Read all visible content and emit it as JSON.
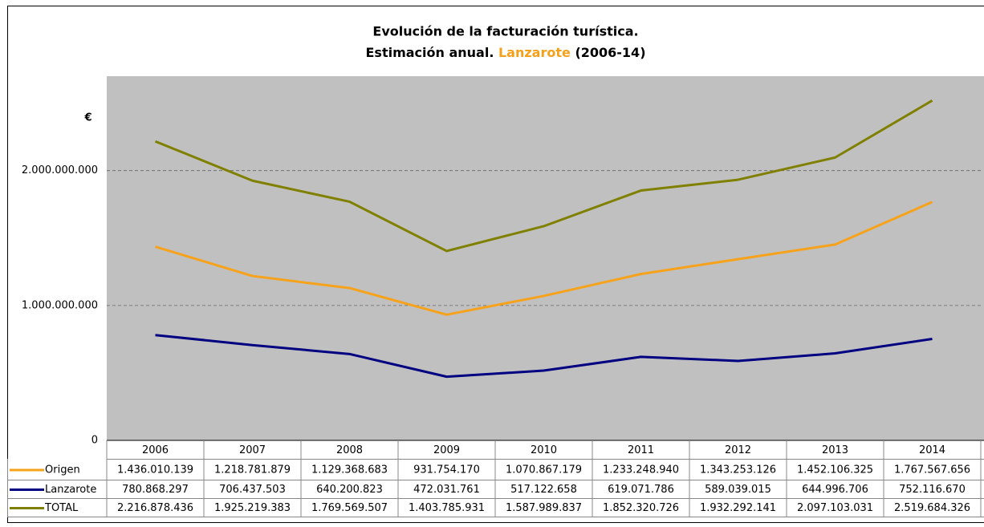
{
  "chart_data": {
    "type": "line",
    "title": "Evolución de la facturación turística.",
    "subtitle": "Estimación anual.",
    "highlight": "Lanzarote",
    "highlight_color": "#f5a01a",
    "period": "(2006-14)",
    "y_label": "€",
    "categories": [
      "2006",
      "2007",
      "2008",
      "2009",
      "2010",
      "2011",
      "2012",
      "2013",
      "2014"
    ],
    "series": [
      {
        "name": "Origen",
        "color": "#f7a21b",
        "values": [
          1436010139,
          1218781879,
          1129368683,
          931754170,
          1070867179,
          1233248940,
          1343253126,
          1452106325,
          1767567656
        ],
        "value_labels": [
          "1.436.010.139",
          "1.218.781.879",
          "1.129.368.683",
          "931.754.170",
          "1.070.867.179",
          "1.233.248.940",
          "1.343.253.126",
          "1.452.106.325",
          "1.767.567.656"
        ]
      },
      {
        "name": "Lanzarote",
        "color": "#000080",
        "values": [
          780868297,
          706437503,
          640200823,
          472031761,
          517122658,
          619071786,
          589039015,
          644996706,
          752116670
        ],
        "value_labels": [
          "780.868.297",
          "706.437.503",
          "640.200.823",
          "472.031.761",
          "517.122.658",
          "619.071.786",
          "589.039.015",
          "644.996.706",
          "752.116.670"
        ]
      },
      {
        "name": "TOTAL",
        "color": "#808000",
        "values": [
          2216878436,
          1925219383,
          1769569507,
          1403785931,
          1587989837,
          1852320726,
          1932292141,
          2097103031,
          2519684326
        ],
        "value_labels": [
          "2.216.878.436",
          "1.925.219.383",
          "1.769.569.507",
          "1.403.785.931",
          "1.587.989.837",
          "1.852.320.726",
          "1.932.292.141",
          "2.097.103.031",
          "2.519.684.326"
        ]
      }
    ],
    "ylim": [
      0,
      2700000000
    ],
    "yticks": [
      0,
      {
        "value": 1000000000,
        "label": "1.000.000.000"
      },
      {
        "value": 2000000000,
        "label": "2.000.000.000"
      }
    ],
    "grid": true,
    "plot_color": "#c0c0c0"
  }
}
